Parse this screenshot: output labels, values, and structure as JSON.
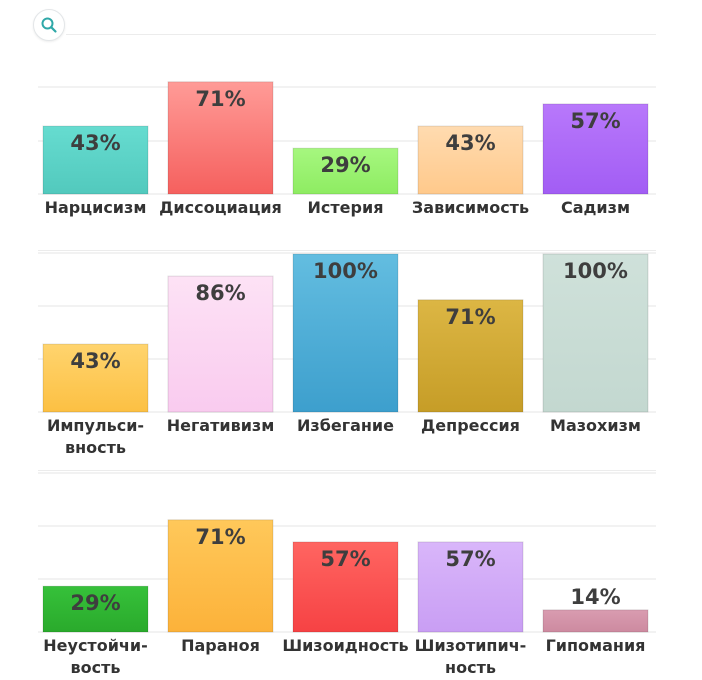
{
  "search": {
    "icon": "search-icon",
    "color": "#2fa8a8"
  },
  "chart_data": [
    {
      "type": "bar",
      "categories": [
        [
          "Нарцисизм"
        ],
        [
          "Диссоциация"
        ],
        [
          "Истерия"
        ],
        [
          "Зависимость"
        ],
        [
          "Садизм"
        ]
      ],
      "values": [
        43,
        71,
        29,
        43,
        57
      ],
      "value_labels": [
        "43%",
        "71%",
        "29%",
        "43%",
        "57%"
      ],
      "colors": [
        [
          "#66dcd0",
          "#52c9bd"
        ],
        [
          "#ff9b97",
          "#f5605e"
        ],
        [
          "#a6f77f",
          "#8eec62"
        ],
        [
          "#ffdbb0",
          "#ffc98b"
        ],
        [
          "#b878fb",
          "#a25df4"
        ]
      ],
      "ylim": [
        0,
        100
      ],
      "grid": true
    },
    {
      "type": "bar",
      "categories": [
        [
          "Импульси-",
          "вность"
        ],
        [
          "Негативизм"
        ],
        [
          "Избегание"
        ],
        [
          "Депрессия"
        ],
        [
          "Мазохизм"
        ]
      ],
      "values": [
        43,
        86,
        100,
        71,
        100
      ],
      "value_labels": [
        "43%",
        "86%",
        "100%",
        "71%",
        "100%"
      ],
      "colors": [
        [
          "#ffd46e",
          "#fcc043"
        ],
        [
          "#fde2f5",
          "#f9cbef"
        ],
        [
          "#63bde0",
          "#3d9fcd"
        ],
        [
          "#dcb644",
          "#c69d27"
        ],
        [
          "#cfe1da",
          "#c3d8d0"
        ]
      ],
      "ylim": [
        0,
        100
      ],
      "grid": true
    },
    {
      "type": "bar",
      "categories": [
        [
          "Неустойчи-",
          "вость"
        ],
        [
          "Параноя"
        ],
        [
          "Шизоидность"
        ],
        [
          "Шизотипич-",
          "ность"
        ],
        [
          "Гипомания"
        ]
      ],
      "values": [
        29,
        71,
        57,
        57,
        14
      ],
      "value_labels": [
        "29%",
        "71%",
        "57%",
        "57%",
        "14%"
      ],
      "colors": [
        [
          "#36c13a",
          "#2aaa2c"
        ],
        [
          "#ffc85a",
          "#fcb23a"
        ],
        [
          "#ff6561",
          "#f64244"
        ],
        [
          "#d9b6fa",
          "#c99ef4"
        ],
        [
          "#d99cb0",
          "#cd8aa0"
        ]
      ],
      "ylim": [
        0,
        100
      ],
      "grid": true
    }
  ]
}
